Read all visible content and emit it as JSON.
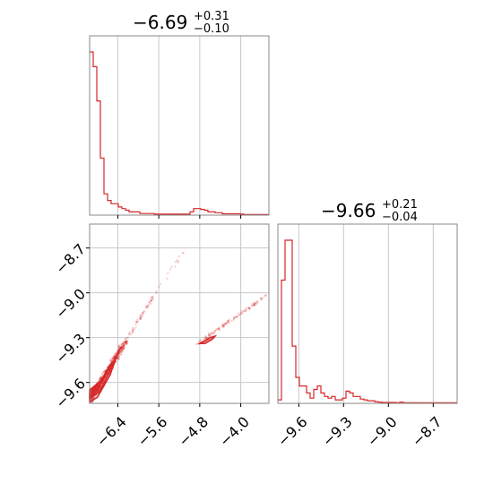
{
  "chart_data": [
    {
      "panel": "histogram-param1",
      "type": "histogram",
      "title": {
        "median": "−6.69",
        "plus": "+0.31",
        "minus": "−0.10"
      },
      "xlim": [
        -6.95,
        -3.45
      ],
      "color": "#d62728",
      "bin_edges": [
        -6.95,
        -6.88,
        -6.81,
        -6.74,
        -6.67,
        -6.6,
        -6.53,
        -6.46,
        -6.39,
        -6.32,
        -6.25,
        -6.18,
        -6.11,
        -6.04,
        -5.97,
        -5.9,
        -5.83,
        -5.76,
        -5.69,
        -5.62,
        -5.55,
        -5.48,
        -5.41,
        -5.34,
        -5.27,
        -5.2,
        -5.13,
        -5.06,
        -4.99,
        -4.92,
        -4.85,
        -4.78,
        -4.71,
        -4.64,
        -4.57,
        -4.5,
        -4.43,
        -4.36,
        -4.29,
        -4.22,
        -4.15,
        -4.08,
        -4.01,
        -3.94,
        -3.87,
        -3.8,
        -3.73,
        -3.66,
        -3.59,
        -3.52,
        -3.45
      ],
      "counts": [
        1.0,
        0.91,
        0.7,
        0.35,
        0.13,
        0.09,
        0.07,
        0.07,
        0.05,
        0.04,
        0.03,
        0.02,
        0.02,
        0.02,
        0.01,
        0.01,
        0.01,
        0.01,
        0.006,
        0.006,
        0.006,
        0.006,
        0.006,
        0.006,
        0.006,
        0.006,
        0.006,
        0.006,
        0.02,
        0.04,
        0.04,
        0.035,
        0.03,
        0.02,
        0.02,
        0.015,
        0.015,
        0.008,
        0.008,
        0.008,
        0.008,
        0.008,
        0.006,
        0.004,
        0.004,
        0.004,
        0.004,
        0.004,
        0.004,
        0.004
      ],
      "xgrid": [
        -6.4,
        -5.6,
        -4.8,
        -4.0
      ]
    },
    {
      "panel": "histogram-param2",
      "type": "histogram",
      "title": {
        "median": "−9.66",
        "plus": "+0.21",
        "minus": "−0.04"
      },
      "xlim": [
        -9.74,
        -8.54
      ],
      "color": "#d62728",
      "xticks": [
        -9.6,
        -9.3,
        -9.0,
        -8.7
      ],
      "xtick_labels": [
        "−9.6",
        "−9.3",
        "−9.0",
        "−8.7"
      ],
      "bin_edges": [
        -9.74,
        -9.716,
        -9.692,
        -9.668,
        -9.644,
        -9.62,
        -9.596,
        -9.572,
        -9.548,
        -9.524,
        -9.5,
        -9.476,
        -9.452,
        -9.428,
        -9.404,
        -9.38,
        -9.356,
        -9.332,
        -9.308,
        -9.284,
        -9.26,
        -9.236,
        -9.212,
        -9.188,
        -9.164,
        -9.14,
        -9.116,
        -9.092,
        -9.068,
        -9.044,
        -9.02,
        -8.996,
        -8.972,
        -8.948,
        -8.924,
        -8.9,
        -8.876,
        -8.852,
        -8.828,
        -8.804,
        -8.78,
        -8.756,
        -8.732,
        -8.708,
        -8.684,
        -8.66,
        -8.636,
        -8.612,
        -8.588,
        -8.564,
        -8.54
      ],
      "counts": [
        0.02,
        0.71,
        0.94,
        0.94,
        0.33,
        0.15,
        0.1,
        0.1,
        0.06,
        0.03,
        0.08,
        0.1,
        0.06,
        0.04,
        0.03,
        0.04,
        0.02,
        0.02,
        0.03,
        0.07,
        0.06,
        0.04,
        0.04,
        0.025,
        0.02,
        0.015,
        0.015,
        0.01,
        0.007,
        0.005,
        0.005,
        0.005,
        0.005,
        0.003,
        0.007,
        0.003,
        0.003,
        0.003,
        0.003,
        0.003,
        0.003,
        0.003,
        0.003,
        0.003,
        0.003,
        0.003,
        0.003,
        0.003,
        0.003,
        0.003
      ]
    },
    {
      "panel": "scatter-param1-vs-param2",
      "type": "scatter",
      "xlim": [
        -6.95,
        -3.45
      ],
      "ylim": [
        -9.74,
        -8.54
      ],
      "color": "#d62728",
      "xticks": [
        -6.4,
        -5.6,
        -4.8,
        -4.0
      ],
      "xtick_labels": [
        "−6.4",
        "−5.6",
        "−4.8",
        "−4.0"
      ],
      "yticks": [
        -8.7,
        -9.0,
        -9.3,
        -9.6
      ],
      "ytick_labels": [
        "−8.7",
        "−9.0",
        "−9.3",
        "−9.6"
      ],
      "clusters": [
        {
          "x0": -6.95,
          "y0": -9.72,
          "x1": -6.25,
          "y1": -9.33,
          "n": 320,
          "spread": 0.018
        },
        {
          "x0": -6.3,
          "y0": -9.35,
          "x1": -5.7,
          "y1": -9.02,
          "n": 60,
          "spread": 0.01
        },
        {
          "x0": -5.75,
          "y0": -9.05,
          "x1": -5.1,
          "y1": -8.72,
          "n": 20,
          "spread": 0.01
        },
        {
          "x0": -4.85,
          "y0": -9.34,
          "x1": -3.5,
          "y1": -9.02,
          "n": 120,
          "spread": 0.008
        }
      ],
      "contours": [
        [
          [
            -6.95,
            -9.73
          ],
          [
            -6.8,
            -9.7
          ],
          [
            -6.55,
            -9.55
          ],
          [
            -6.4,
            -9.4
          ],
          [
            -6.33,
            -9.36
          ],
          [
            -6.45,
            -9.44
          ],
          [
            -6.7,
            -9.58
          ],
          [
            -6.95,
            -9.65
          ]
        ],
        [
          [
            -6.95,
            -9.71
          ],
          [
            -6.75,
            -9.66
          ],
          [
            -6.55,
            -9.52
          ],
          [
            -6.45,
            -9.45
          ],
          [
            -6.55,
            -9.48
          ],
          [
            -6.75,
            -9.6
          ],
          [
            -6.95,
            -9.66
          ]
        ],
        [
          [
            -6.95,
            -9.7
          ],
          [
            -6.8,
            -9.65
          ],
          [
            -6.65,
            -9.56
          ],
          [
            -6.7,
            -9.57
          ],
          [
            -6.85,
            -9.64
          ],
          [
            -6.95,
            -9.68
          ]
        ],
        [
          [
            -4.8,
            -9.34
          ],
          [
            -4.6,
            -9.3
          ],
          [
            -4.5,
            -9.29
          ],
          [
            -4.55,
            -9.31
          ],
          [
            -4.7,
            -9.34
          ]
        ]
      ]
    }
  ]
}
